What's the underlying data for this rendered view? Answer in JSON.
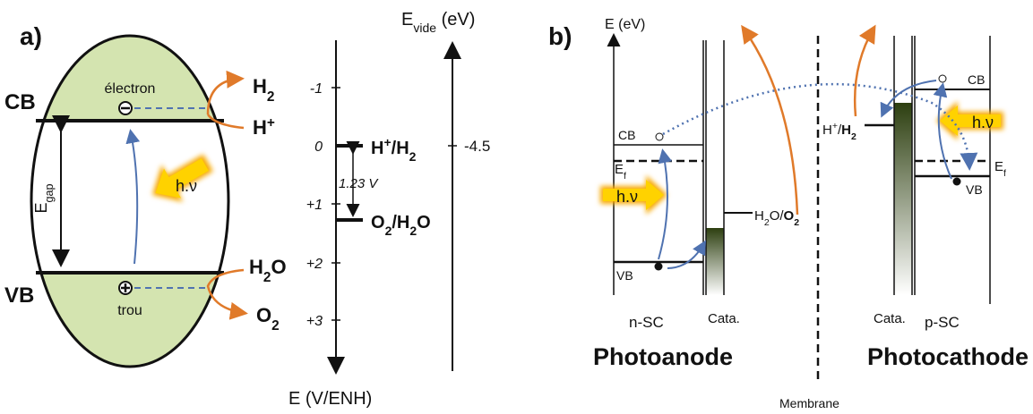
{
  "panel_a": {
    "label": "a)",
    "cb": "CB",
    "vb": "VB",
    "electron": "électron",
    "hole": "trou",
    "gap": [
      "E",
      "gap"
    ],
    "light": "h.ν",
    "h2": [
      "H",
      "2"
    ],
    "h_plus": [
      "H",
      "+"
    ],
    "h2o": [
      "H",
      "2",
      "O"
    ],
    "o2": [
      "O",
      "2"
    ],
    "axis": {
      "label": "E (V/ENH)",
      "ticks": [
        "-1",
        "0",
        "+1",
        "+2",
        "+3"
      ],
      "vacuum": [
        "E",
        "vide",
        " (eV)"
      ],
      "vacuum_value": "-4.5",
      "couple_h": [
        "H",
        "+",
        "/H",
        "2"
      ],
      "couple_o": [
        "O",
        "2",
        "/H",
        "2",
        "O"
      ],
      "gap_voltage": "1.23 V"
    }
  },
  "panel_b": {
    "label": "b)",
    "energy_axis": "E (eV)",
    "membrane": "Membrane",
    "photoanode": {
      "cb": "CB",
      "fermi": [
        "E",
        "f"
      ],
      "light": "h.ν",
      "vb": "VB",
      "semiconductor": "n-SC",
      "catalyst": "Cata.",
      "title": "Photoanode",
      "couple": [
        "H",
        "2",
        "O/",
        "O",
        "2"
      ]
    },
    "photocathode": {
      "cb": "CB",
      "fermi": [
        "E",
        "f"
      ],
      "light": "h.ν",
      "vb": "VB",
      "semiconductor": "p-SC",
      "catalyst": "Cata.",
      "title": "Photocathode",
      "couple": [
        "H",
        "+",
        "/",
        "H",
        "2"
      ]
    }
  }
}
